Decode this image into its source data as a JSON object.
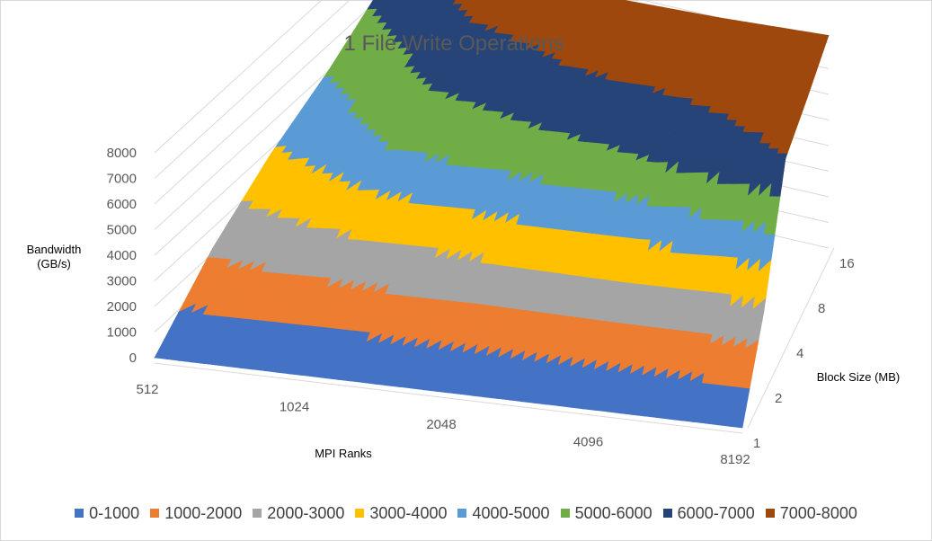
{
  "chart_data": {
    "type": "surface",
    "title": "1 File Write Operations",
    "zlabel": "Bandwidth\n(GB/s)",
    "xlabel": "MPI Ranks",
    "ylabel": "Block Size (MB)",
    "x": [
      "512",
      "1024",
      "2048",
      "4096",
      "8192"
    ],
    "y": [
      "1",
      "2",
      "4",
      "8",
      "16"
    ],
    "z_ticks": [
      "0",
      "1000",
      "2000",
      "3000",
      "4000",
      "5000",
      "6000",
      "7000",
      "8000"
    ],
    "zlim": [
      0,
      8000
    ],
    "values": [
      [
        0,
        0,
        0,
        0,
        0
      ],
      [
        2200,
        2500,
        2700,
        2700,
        2800
      ],
      [
        3800,
        5200,
        5600,
        6000,
        7000
      ],
      [
        5000,
        6500,
        7000,
        7200,
        7600
      ],
      [
        6500,
        7600,
        7800,
        8000,
        8300
      ]
    ],
    "bands": [
      {
        "name": "0-1000",
        "color": "#4472c4"
      },
      {
        "name": "1000-2000",
        "color": "#ed7d31"
      },
      {
        "name": "2000-3000",
        "color": "#a5a5a5"
      },
      {
        "name": "3000-4000",
        "color": "#ffc000"
      },
      {
        "name": "4000-5000",
        "color": "#5b9bd5"
      },
      {
        "name": "5000-6000",
        "color": "#70ad47"
      },
      {
        "name": "6000-7000",
        "color": "#264478"
      },
      {
        "name": "7000-8000",
        "color": "#9e480e"
      }
    ],
    "legend_position": "bottom",
    "grid": true
  }
}
